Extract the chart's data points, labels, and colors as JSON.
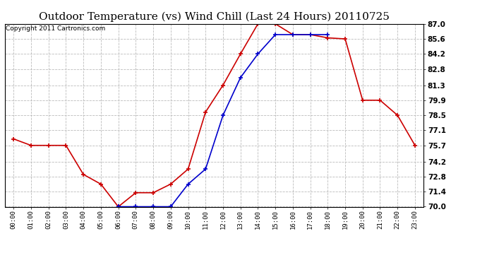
{
  "title": "Outdoor Temperature (vs) Wind Chill (Last 24 Hours) 20110725",
  "copyright": "Copyright 2011 Cartronics.com",
  "x_labels": [
    "00:00",
    "01:00",
    "02:00",
    "03:00",
    "04:00",
    "05:00",
    "06:00",
    "07:00",
    "08:00",
    "09:00",
    "10:00",
    "11:00",
    "12:00",
    "13:00",
    "14:00",
    "15:00",
    "16:00",
    "17:00",
    "18:00",
    "19:00",
    "20:00",
    "21:00",
    "22:00",
    "23:00"
  ],
  "temp": [
    76.3,
    75.7,
    75.7,
    75.7,
    73.0,
    72.1,
    70.0,
    71.3,
    71.3,
    72.1,
    73.5,
    78.8,
    81.3,
    84.2,
    87.0,
    87.0,
    86.0,
    86.0,
    85.7,
    85.6,
    79.9,
    79.9,
    78.5,
    75.7
  ],
  "windchill": [
    null,
    null,
    null,
    null,
    null,
    null,
    70.0,
    70.0,
    70.0,
    70.0,
    72.1,
    73.5,
    78.5,
    82.0,
    84.2,
    86.0,
    86.0,
    86.0,
    86.0,
    null,
    null,
    null,
    null,
    null
  ],
  "temp_color": "#cc0000",
  "windchill_color": "#0000cc",
  "background_color": "#ffffff",
  "grid_color": "#bbbbbb",
  "ylim": [
    70.0,
    87.0
  ],
  "yticks": [
    70.0,
    71.4,
    72.8,
    74.2,
    75.7,
    77.1,
    78.5,
    79.9,
    81.3,
    82.8,
    84.2,
    85.6,
    87.0
  ],
  "title_fontsize": 11,
  "copyright_fontsize": 6.5
}
